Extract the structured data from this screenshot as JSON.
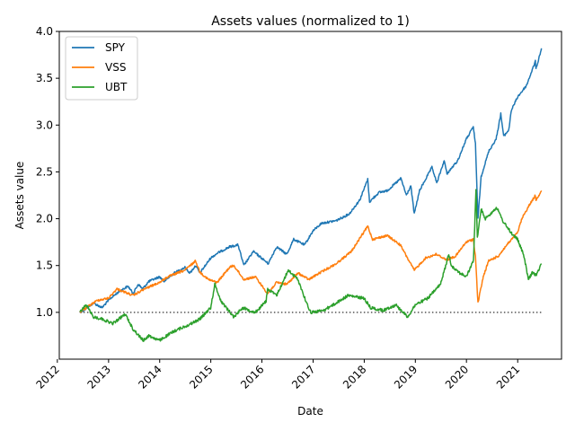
{
  "chart_data": {
    "type": "line",
    "title": "Assets values (normalized to 1)",
    "xlabel": "Date",
    "ylabel": "Assets value",
    "xlim": [
      "2012-01-15",
      "2021-11-10"
    ],
    "ylim": [
      0.5,
      4.0
    ],
    "xticks": [
      {
        "date": "2012-01-01",
        "label": "2012"
      },
      {
        "date": "2013-01-01",
        "label": "2013"
      },
      {
        "date": "2014-01-01",
        "label": "2014"
      },
      {
        "date": "2015-01-01",
        "label": "2015"
      },
      {
        "date": "2016-01-01",
        "label": "2016"
      },
      {
        "date": "2017-01-01",
        "label": "2017"
      },
      {
        "date": "2018-01-01",
        "label": "2018"
      },
      {
        "date": "2019-01-01",
        "label": "2019"
      },
      {
        "date": "2020-01-01",
        "label": "2020"
      },
      {
        "date": "2021-01-01",
        "label": "2021"
      }
    ],
    "yticks": [
      1.0,
      1.5,
      2.0,
      2.5,
      3.0,
      3.5,
      4.0
    ],
    "ytick_labels": [
      "1.0",
      "1.5",
      "2.0",
      "2.5",
      "3.0",
      "3.5",
      "4.0"
    ],
    "legend_position": "top-left",
    "grid": false,
    "reference_line": {
      "y": 1.0,
      "x": [
        "2012-06-10",
        "2021-06-20"
      ],
      "color": "#555555",
      "style": "dotted"
    },
    "series": [
      {
        "name": "SPY",
        "color": "#1f77b4",
        "points": [
          [
            "2012-06-10",
            1.0
          ],
          [
            "2012-07-15",
            1.03
          ],
          [
            "2012-09-15",
            1.1
          ],
          [
            "2012-11-15",
            1.05
          ],
          [
            "2013-01-15",
            1.15
          ],
          [
            "2013-03-15",
            1.22
          ],
          [
            "2013-05-20",
            1.28
          ],
          [
            "2013-06-25",
            1.2
          ],
          [
            "2013-08-01",
            1.3
          ],
          [
            "2013-09-01",
            1.25
          ],
          [
            "2013-10-15",
            1.33
          ],
          [
            "2013-12-31",
            1.38
          ],
          [
            "2014-02-01",
            1.33
          ],
          [
            "2014-04-15",
            1.42
          ],
          [
            "2014-07-01",
            1.48
          ],
          [
            "2014-08-05",
            1.42
          ],
          [
            "2014-09-15",
            1.5
          ],
          [
            "2014-10-15",
            1.42
          ],
          [
            "2014-12-31",
            1.58
          ],
          [
            "2015-02-15",
            1.63
          ],
          [
            "2015-05-15",
            1.7
          ],
          [
            "2015-07-15",
            1.72
          ],
          [
            "2015-08-25",
            1.5
          ],
          [
            "2015-11-01",
            1.65
          ],
          [
            "2016-01-15",
            1.56
          ],
          [
            "2016-02-15",
            1.52
          ],
          [
            "2016-04-15",
            1.7
          ],
          [
            "2016-06-27",
            1.62
          ],
          [
            "2016-08-15",
            1.78
          ],
          [
            "2016-11-01",
            1.72
          ],
          [
            "2016-12-31",
            1.87
          ],
          [
            "2017-03-01",
            1.95
          ],
          [
            "2017-06-15",
            1.98
          ],
          [
            "2017-09-15",
            2.05
          ],
          [
            "2017-11-30",
            2.2
          ],
          [
            "2018-01-26",
            2.42
          ],
          [
            "2018-02-08",
            2.18
          ],
          [
            "2018-04-15",
            2.28
          ],
          [
            "2018-06-15",
            2.3
          ],
          [
            "2018-09-20",
            2.43
          ],
          [
            "2018-10-29",
            2.25
          ],
          [
            "2018-11-30",
            2.35
          ],
          [
            "2018-12-24",
            2.05
          ],
          [
            "2019-01-31",
            2.3
          ],
          [
            "2019-04-30",
            2.55
          ],
          [
            "2019-06-03",
            2.38
          ],
          [
            "2019-07-26",
            2.62
          ],
          [
            "2019-08-15",
            2.48
          ],
          [
            "2019-10-31",
            2.62
          ],
          [
            "2019-12-31",
            2.85
          ],
          [
            "2020-02-19",
            2.98
          ],
          [
            "2020-03-05",
            2.8
          ],
          [
            "2020-03-23",
            2.0
          ],
          [
            "2020-04-15",
            2.45
          ],
          [
            "2020-06-08",
            2.72
          ],
          [
            "2020-07-31",
            2.85
          ],
          [
            "2020-09-02",
            3.12
          ],
          [
            "2020-09-23",
            2.88
          ],
          [
            "2020-10-30",
            2.95
          ],
          [
            "2020-11-15",
            3.15
          ],
          [
            "2020-12-31",
            3.3
          ],
          [
            "2021-03-04",
            3.42
          ],
          [
            "2021-05-07",
            3.68
          ],
          [
            "2021-05-12",
            3.6
          ],
          [
            "2021-06-20",
            3.82
          ]
        ]
      },
      {
        "name": "VSS",
        "color": "#ff7f0e",
        "points": [
          [
            "2012-06-10",
            1.0
          ],
          [
            "2012-08-15",
            1.07
          ],
          [
            "2012-10-15",
            1.13
          ],
          [
            "2012-12-31",
            1.15
          ],
          [
            "2013-03-01",
            1.25
          ],
          [
            "2013-06-25",
            1.18
          ],
          [
            "2013-09-15",
            1.25
          ],
          [
            "2013-12-31",
            1.32
          ],
          [
            "2014-03-01",
            1.38
          ],
          [
            "2014-06-30",
            1.45
          ],
          [
            "2014-09-15",
            1.55
          ],
          [
            "2014-10-15",
            1.43
          ],
          [
            "2014-12-15",
            1.35
          ],
          [
            "2015-02-15",
            1.32
          ],
          [
            "2015-05-15",
            1.48
          ],
          [
            "2015-06-15",
            1.5
          ],
          [
            "2015-08-25",
            1.35
          ],
          [
            "2015-11-15",
            1.38
          ],
          [
            "2016-02-11",
            1.2
          ],
          [
            "2016-04-15",
            1.32
          ],
          [
            "2016-06-27",
            1.3
          ],
          [
            "2016-09-15",
            1.42
          ],
          [
            "2016-12-01",
            1.35
          ],
          [
            "2017-02-15",
            1.42
          ],
          [
            "2017-06-15",
            1.52
          ],
          [
            "2017-10-01",
            1.65
          ],
          [
            "2018-01-26",
            1.92
          ],
          [
            "2018-03-01",
            1.78
          ],
          [
            "2018-06-15",
            1.82
          ],
          [
            "2018-09-15",
            1.72
          ],
          [
            "2018-12-24",
            1.45
          ],
          [
            "2019-03-15",
            1.58
          ],
          [
            "2019-05-30",
            1.62
          ],
          [
            "2019-08-15",
            1.56
          ],
          [
            "2019-10-15",
            1.6
          ],
          [
            "2019-12-31",
            1.75
          ],
          [
            "2020-02-19",
            1.78
          ],
          [
            "2020-03-05",
            1.6
          ],
          [
            "2020-03-23",
            1.1
          ],
          [
            "2020-04-30",
            1.38
          ],
          [
            "2020-06-08",
            1.55
          ],
          [
            "2020-08-15",
            1.6
          ],
          [
            "2020-10-15",
            1.72
          ],
          [
            "2020-12-31",
            1.85
          ],
          [
            "2021-01-31",
            2.0
          ],
          [
            "2021-03-15",
            2.12
          ],
          [
            "2021-05-07",
            2.25
          ],
          [
            "2021-05-12",
            2.2
          ],
          [
            "2021-06-20",
            2.3
          ]
        ]
      },
      {
        "name": "UBT",
        "color": "#2ca02c",
        "points": [
          [
            "2012-06-10",
            1.0
          ],
          [
            "2012-07-25",
            1.08
          ],
          [
            "2012-09-15",
            0.95
          ],
          [
            "2012-11-15",
            0.93
          ],
          [
            "2013-01-31",
            0.88
          ],
          [
            "2013-04-30",
            0.98
          ],
          [
            "2013-06-25",
            0.82
          ],
          [
            "2013-09-05",
            0.7
          ],
          [
            "2013-10-15",
            0.75
          ],
          [
            "2013-12-31",
            0.7
          ],
          [
            "2014-04-15",
            0.8
          ],
          [
            "2014-08-15",
            0.88
          ],
          [
            "2014-10-15",
            0.93
          ],
          [
            "2014-12-31",
            1.05
          ],
          [
            "2015-01-30",
            1.3
          ],
          [
            "2015-03-15",
            1.12
          ],
          [
            "2015-06-15",
            0.95
          ],
          [
            "2015-08-15",
            1.05
          ],
          [
            "2015-11-15",
            1.0
          ],
          [
            "2016-01-31",
            1.12
          ],
          [
            "2016-02-11",
            1.25
          ],
          [
            "2016-04-15",
            1.18
          ],
          [
            "2016-07-08",
            1.45
          ],
          [
            "2016-09-15",
            1.35
          ],
          [
            "2016-11-15",
            1.1
          ],
          [
            "2016-12-15",
            1.0
          ],
          [
            "2017-03-15",
            1.02
          ],
          [
            "2017-06-15",
            1.1
          ],
          [
            "2017-09-07",
            1.18
          ],
          [
            "2017-12-31",
            1.15
          ],
          [
            "2018-02-15",
            1.05
          ],
          [
            "2018-05-15",
            1.02
          ],
          [
            "2018-08-15",
            1.08
          ],
          [
            "2018-11-08",
            0.95
          ],
          [
            "2018-12-31",
            1.08
          ],
          [
            "2019-03-31",
            1.15
          ],
          [
            "2019-06-30",
            1.3
          ],
          [
            "2019-08-28",
            1.62
          ],
          [
            "2019-09-15",
            1.5
          ],
          [
            "2019-11-15",
            1.42
          ],
          [
            "2019-12-31",
            1.38
          ],
          [
            "2020-02-20",
            1.55
          ],
          [
            "2020-03-09",
            2.3
          ],
          [
            "2020-03-19",
            1.8
          ],
          [
            "2020-04-15",
            2.1
          ],
          [
            "2020-05-15",
            2.0
          ],
          [
            "2020-08-04",
            2.12
          ],
          [
            "2020-09-15",
            1.98
          ],
          [
            "2020-11-15",
            1.85
          ],
          [
            "2020-12-31",
            1.78
          ],
          [
            "2021-02-15",
            1.6
          ],
          [
            "2021-03-18",
            1.35
          ],
          [
            "2021-04-15",
            1.42
          ],
          [
            "2021-05-15",
            1.4
          ],
          [
            "2021-06-20",
            1.52
          ]
        ]
      }
    ]
  }
}
